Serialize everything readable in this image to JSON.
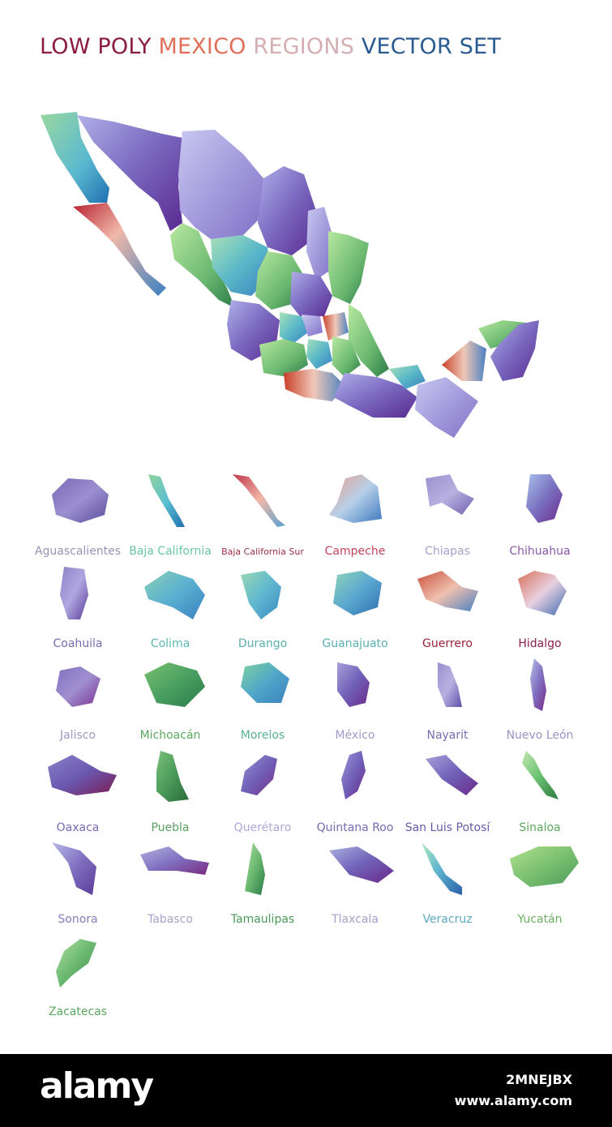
{
  "title": {
    "part1": "LOW POLY ",
    "part2": "MEXICO ",
    "part3": "REGIONS ",
    "part4": "VECTOR SET",
    "colors": [
      "#8b1d3f",
      "#e0705a",
      "#d9b3b3",
      "#1d4f8a"
    ]
  },
  "regions": [
    {
      "name": "Aguascalientes",
      "colors": [
        "#7a68b8",
        "#9c8fd0",
        "#5b4c9c"
      ],
      "label_color": "#9a90b8"
    },
    {
      "name": "Baja California",
      "colors": [
        "#8fd39a",
        "#5bbfd0",
        "#1f6fb0"
      ],
      "label_color": "#6cc4a8"
    },
    {
      "name": "Baja California Sur",
      "colors": [
        "#c2374a",
        "#f0b8a8",
        "#5aa0d0"
      ],
      "label_color": "#9c2f48"
    },
    {
      "name": "Campeche",
      "colors": [
        "#e89c8c",
        "#b8d0e8",
        "#3c78c0"
      ],
      "label_color": "#c4435a"
    },
    {
      "name": "Chiapas",
      "colors": [
        "#9b90d0",
        "#b8b0e0",
        "#7060b0"
      ],
      "label_color": "#a8a0cc"
    },
    {
      "name": "Chihuahua",
      "colors": [
        "#a8c0e8",
        "#7a70c0",
        "#6a2a8a"
      ],
      "label_color": "#8a5aa8"
    },
    {
      "name": "Coahuila",
      "colors": [
        "#9080c8",
        "#b0a8e0",
        "#5a3a98"
      ],
      "label_color": "#7a6ab0"
    },
    {
      "name": "Colima",
      "colors": [
        "#8ad0b8",
        "#5ab0d0",
        "#3a80c0"
      ],
      "label_color": "#5ab8b0"
    },
    {
      "name": "Durango",
      "colors": [
        "#9ad8b0",
        "#60b8d0",
        "#3a88c0"
      ],
      "label_color": "#58b0a8"
    },
    {
      "name": "Guanajuato",
      "colors": [
        "#90d4b8",
        "#5aa8d0",
        "#2f6fb0"
      ],
      "label_color": "#5ab0b0"
    },
    {
      "name": "Guerrero",
      "colors": [
        "#c8503a",
        "#f0c0b0",
        "#4a80c0"
      ],
      "label_color": "#9c2038"
    },
    {
      "name": "Hidalgo",
      "colors": [
        "#d87058",
        "#e8d0e0",
        "#3a6ab0"
      ],
      "label_color": "#8a2048"
    },
    {
      "name": "Jalisco",
      "colors": [
        "#8070c0",
        "#a090d0",
        "#7a3090"
      ],
      "label_color": "#9a9ac0"
    },
    {
      "name": "Michoacán",
      "colors": [
        "#7ac070",
        "#4aa060",
        "#2a7a4a"
      ],
      "label_color": "#5aa860"
    },
    {
      "name": "Morelos",
      "colors": [
        "#80d0a0",
        "#50a8c8",
        "#3a80c0"
      ],
      "label_color": "#58b098"
    },
    {
      "name": "México",
      "colors": [
        "#a8a0d8",
        "#7060b8",
        "#6a2a88"
      ],
      "label_color": "#a098c8"
    },
    {
      "name": "Nayarit",
      "colors": [
        "#9a90d0",
        "#b8b0e0",
        "#6050a8"
      ],
      "label_color": "#7a6ab0"
    },
    {
      "name": "Nuevo León",
      "colors": [
        "#b8c0e8",
        "#8070c0",
        "#7a2a88"
      ],
      "label_color": "#a090c8"
    },
    {
      "name": "Oaxaca",
      "colors": [
        "#8a80c8",
        "#6a58b0",
        "#7a1a50"
      ],
      "label_color": "#7a6ab0"
    },
    {
      "name": "Puebla",
      "colors": [
        "#7ac07a",
        "#4a9a5a",
        "#2a6a3a"
      ],
      "label_color": "#5aa060"
    },
    {
      "name": "Querétaro",
      "colors": [
        "#9a90d0",
        "#7060b8",
        "#7a2a88"
      ],
      "label_color": "#b0a8d8"
    },
    {
      "name": "Quintana Roo",
      "colors": [
        "#a098d8",
        "#7060b8",
        "#6a2a88"
      ],
      "label_color": "#7a68b0"
    },
    {
      "name": "San Luis Potosí",
      "colors": [
        "#a8a0d8",
        "#7060b8",
        "#6a2a88"
      ],
      "label_color": "#6a58a8"
    },
    {
      "name": "Sinaloa",
      "colors": [
        "#c0e8b0",
        "#6ac070",
        "#2a7a40"
      ],
      "label_color": "#5aa860"
    },
    {
      "name": "Sonora",
      "colors": [
        "#b8b8e8",
        "#8070c0",
        "#5a3a98"
      ],
      "label_color": "#8a7ab8"
    },
    {
      "name": "Tabasco",
      "colors": [
        "#b0b0e0",
        "#8070c0",
        "#7a2a80"
      ],
      "label_color": "#a8a0cc"
    },
    {
      "name": "Tamaulipas",
      "colors": [
        "#b0e0a0",
        "#6ab870",
        "#2a7a48"
      ],
      "label_color": "#4a9a58"
    },
    {
      "name": "Tlaxcala",
      "colors": [
        "#a8b0e0",
        "#7060b8",
        "#6a2a88"
      ],
      "label_color": "#a8a0cc"
    },
    {
      "name": "Veracruz",
      "colors": [
        "#b0e8c0",
        "#5ab0d0",
        "#2a60a8"
      ],
      "label_color": "#5aa8c0"
    },
    {
      "name": "Yucatán",
      "colors": [
        "#b0e090",
        "#7ac070",
        "#4a9a5a"
      ],
      "label_color": "#6ab060"
    },
    {
      "name": "Zacatecas",
      "colors": [
        "#b0e0a0",
        "#6ab870",
        "#3a8a4a"
      ],
      "label_color": "#5aa860"
    }
  ],
  "footer": {
    "brand": "alamy",
    "image_code": "2MNEJBX",
    "url": "www.alamy.com"
  }
}
